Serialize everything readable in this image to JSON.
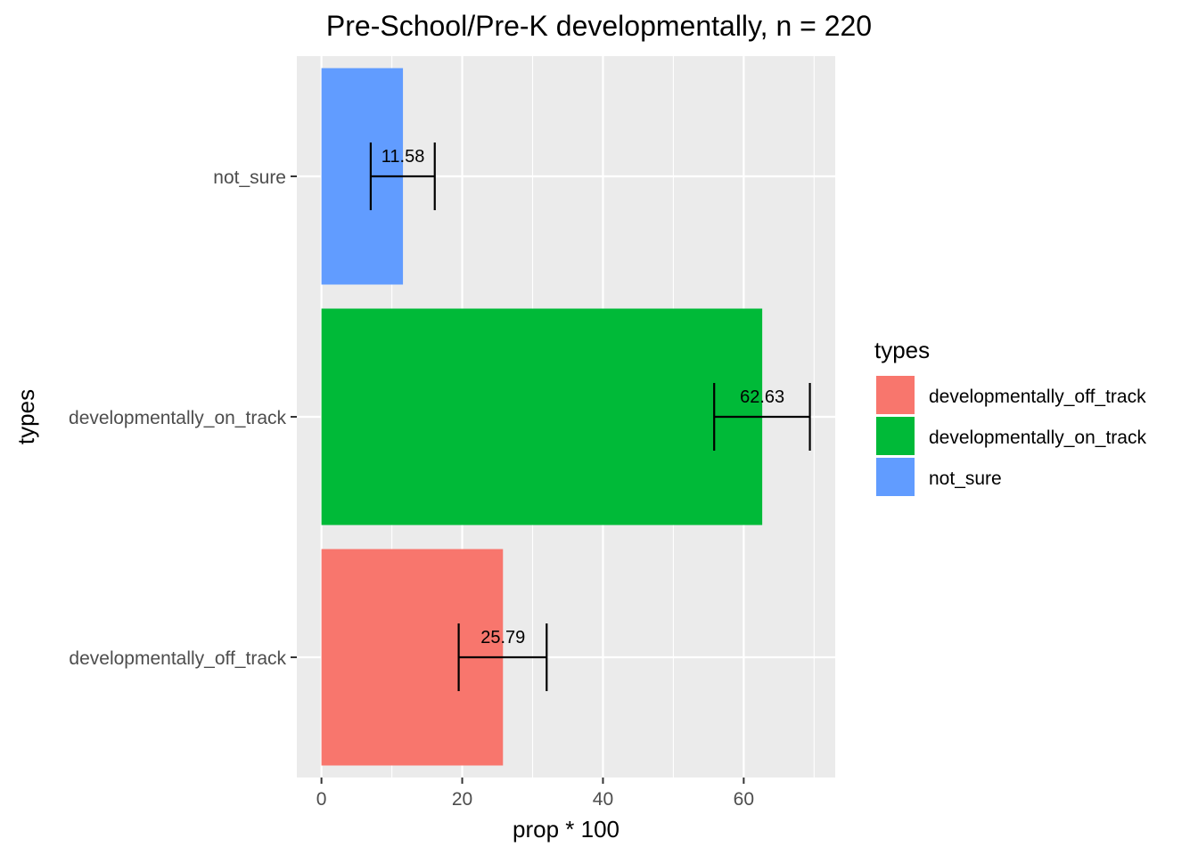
{
  "chart_data": {
    "type": "bar",
    "orientation": "horizontal",
    "title": "Pre-School/Pre-K developmentally, n = 220",
    "xlabel": "prop * 100",
    "ylabel": "types",
    "xlim": [
      -3.5,
      73
    ],
    "x_ticks": [
      0,
      20,
      40,
      60
    ],
    "x_tick_labels": [
      "0",
      "20",
      "40",
      "60"
    ],
    "x_minor_gridlines": [
      10,
      30,
      50,
      70
    ],
    "grid": true,
    "categories": [
      "developmentally_off_track",
      "developmentally_on_track",
      "not_sure"
    ],
    "values": [
      25.79,
      62.63,
      11.58
    ],
    "value_labels": [
      "25.79",
      "62.63",
      "11.58"
    ],
    "error_bars": [
      {
        "low": 19.5,
        "high": 32.0
      },
      {
        "low": 55.8,
        "high": 69.4
      },
      {
        "low": 7.0,
        "high": 16.1
      }
    ],
    "colors": [
      "#F8766D",
      "#00BA38",
      "#619CFF"
    ],
    "legend": {
      "title": "types",
      "position": "right",
      "items": [
        "developmentally_off_track",
        "developmentally_on_track",
        "not_sure"
      ]
    }
  }
}
